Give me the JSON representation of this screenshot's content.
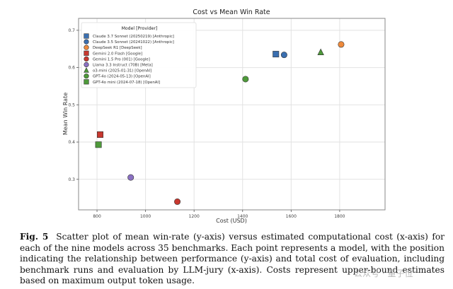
{
  "chart_data": {
    "type": "scatter",
    "title": "Cost vs Mean Win Rate",
    "xlabel": "Cost (USD)",
    "ylabel": "Mean Win Rate",
    "xlim": [
      724,
      1987
    ],
    "ylim": [
      0.218,
      0.732
    ],
    "xticks": [
      800,
      1000,
      1200,
      1400,
      1600,
      1800
    ],
    "yticks": [
      0.3,
      0.4,
      0.5,
      0.6,
      0.7
    ],
    "grid": true,
    "legend": {
      "title": "Model [Provider]",
      "placement": "top-left"
    },
    "series": [
      {
        "name": "Claude 3.7 Sonnet (20250219) [Anthropic]",
        "marker": "square",
        "color": "#3a6fb0",
        "x": 1537,
        "y": 0.636
      },
      {
        "name": "Claude 3.5 Sonnet (20241022) [Anthropic]",
        "marker": "circle",
        "color": "#3a6fb0",
        "x": 1571,
        "y": 0.634
      },
      {
        "name": "DeepSeek R1 [DeepSeek]",
        "marker": "circle",
        "color": "#ee8a3c",
        "x": 1806,
        "y": 0.662
      },
      {
        "name": "Gemini 2.0 Flash [Google]",
        "marker": "square",
        "color": "#c8382f",
        "x": 813,
        "y": 0.42
      },
      {
        "name": "Gemini 1.5 Pro (001) [Google]",
        "marker": "circle",
        "color": "#c8382f",
        "x": 1131,
        "y": 0.24
      },
      {
        "name": "Llama 3.3 Instruct (70B) [Meta]",
        "marker": "circle",
        "color": "#8a70c2",
        "x": 939,
        "y": 0.305
      },
      {
        "name": "o3-mini (2025-01-31) [OpenAI]",
        "marker": "triangle",
        "color": "#4e9a3a",
        "x": 1722,
        "y": 0.641
      },
      {
        "name": "GPT-4o (2024-05-13) [OpenAI]",
        "marker": "circle",
        "color": "#4e9a3a",
        "x": 1412,
        "y": 0.569
      },
      {
        "name": "GPT-4o mini (2024-07-18) [OpenAI]",
        "marker": "square",
        "color": "#4e9a3a",
        "x": 806,
        "y": 0.393
      }
    ]
  },
  "caption": {
    "label": "Fig. 5",
    "text": "Scatter plot of mean win-rate (y-axis) versus estimated computational cost (x-axis) for each of the nine models across 35 benchmarks. Each point represents a model, with the position indicating the relationship between performance (y-axis) and total cost of evaluation, including benchmark runs and evaluation by LLM-jury (x-axis). Costs represent upper-bound estimates based on maximum output token usage."
  },
  "watermark": "公众号 · 量子位"
}
